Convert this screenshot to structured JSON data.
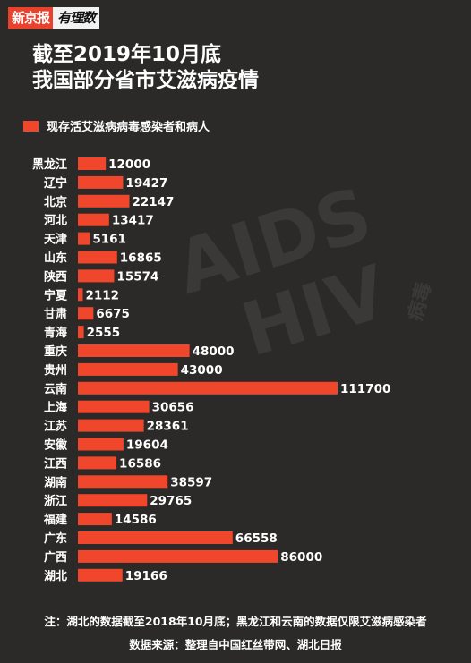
{
  "logo": {
    "brand": "新京报",
    "column": "有理数"
  },
  "title_line1": "截至2019年10月底",
  "title_line2": "我国部分省市艾滋病疫情",
  "watermark": {
    "line1": "AIDS",
    "line2": "HIV",
    "side": "病毒"
  },
  "notes": {
    "note": "注：湖北的数据截至2018年10月底；黑龙江和云南的数据仅限艾滋病感染者",
    "source": "数据来源：整理自中国红丝带网、湖北日报"
  },
  "colors": {
    "background": "#2b2a29",
    "bar": "#f0472c",
    "text": "#ffffff"
  },
  "chart_data": {
    "type": "bar",
    "orientation": "horizontal",
    "title": "截至2019年10月底 我国部分省市艾滋病疫情",
    "legend_position": "top-left",
    "grid": false,
    "xlim": [
      0,
      111700
    ],
    "categories": [
      "黑龙江",
      "辽宁",
      "北京",
      "河北",
      "天津",
      "山东",
      "陕西",
      "宁夏",
      "甘肃",
      "青海",
      "重庆",
      "贵州",
      "云南",
      "上海",
      "江苏",
      "安徽",
      "江西",
      "湖南",
      "浙江",
      "福建",
      "广东",
      "广西",
      "湖北"
    ],
    "series": [
      {
        "name": "现存活艾滋病病毒感染者和病人",
        "values": [
          12000,
          19427,
          22147,
          13417,
          5161,
          16865,
          15574,
          2112,
          6675,
          2555,
          48000,
          43000,
          111700,
          30656,
          28361,
          19604,
          16586,
          38597,
          29765,
          14586,
          66558,
          86000,
          19166
        ]
      }
    ],
    "value_labels": [
      "12000",
      "19427",
      "22147",
      "13417",
      "5161",
      "16865",
      "15574",
      "2112",
      "6675",
      "2555",
      "48000",
      "43000",
      "111700",
      "30656",
      "28361",
      "19604",
      "16586",
      "38597",
      "29765",
      "14586",
      "66558",
      "86000",
      "19166"
    ]
  }
}
